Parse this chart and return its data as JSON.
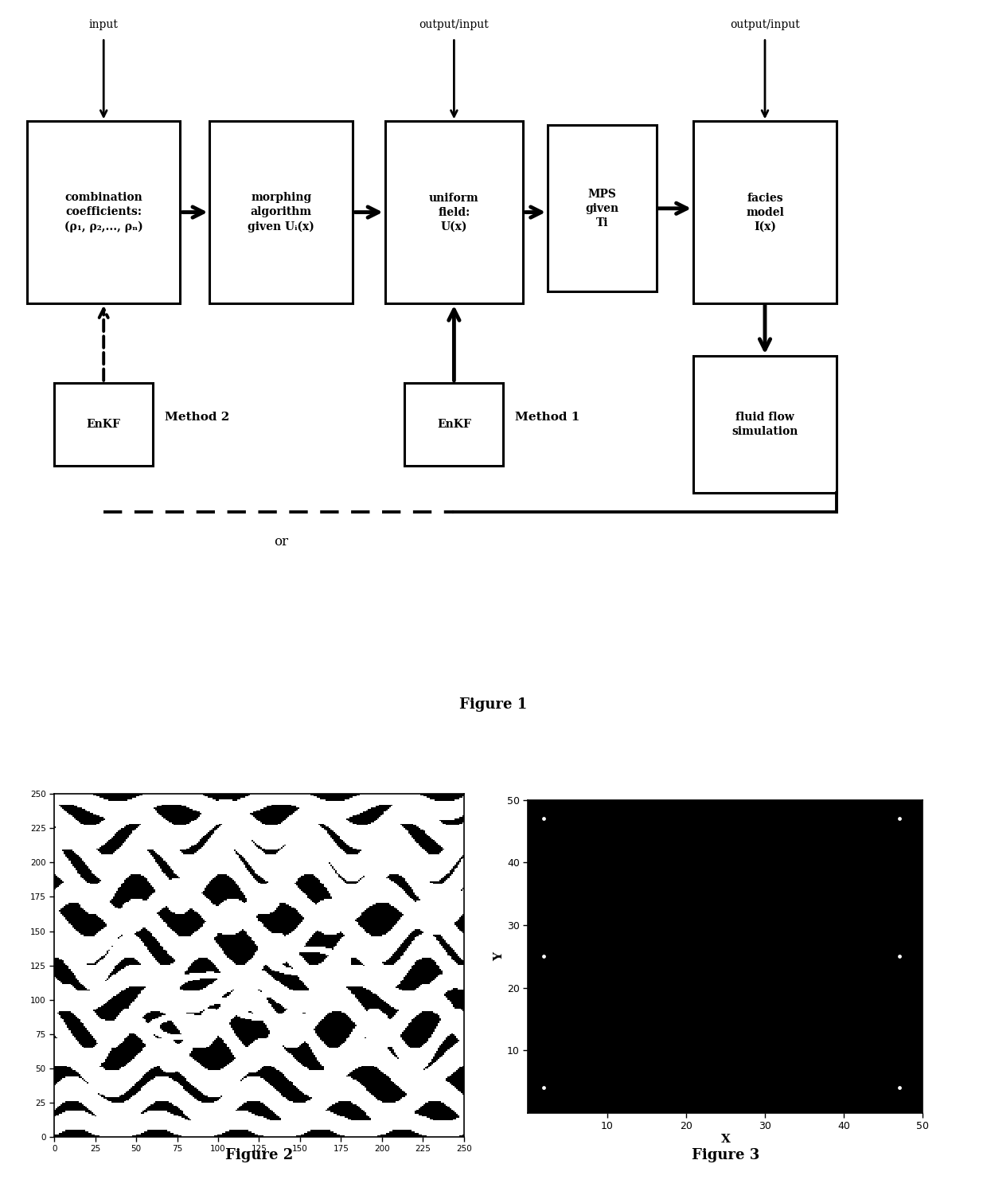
{
  "background_color": "#ffffff",
  "fig_width": 12.4,
  "fig_height": 15.11,
  "fig1_title": "Figure 1",
  "fig2_title": "Figure 2",
  "fig3_title": "Figure 3",
  "combo_text": "combination\ncoefficients:\n(ρ₁, ρ₂,..., ρₙ)",
  "morph_text": "morphing\nalgorithm\ngiven Uᵢ(x)",
  "uniform_text": "uniform\nfield:\nU(x)",
  "mps_text": "MPS\ngiven\nTi",
  "facies_text": "facies\nmodel\nI(x)",
  "fluid_text": "fluid flow\nsimulation",
  "enkf_text": "EnKF",
  "method1_text": "Method 1",
  "method2_text": "Method 2",
  "or_text": "or",
  "input_text": "input",
  "output_input_text": "output/input",
  "fig2_xticks": [
    0,
    25,
    50,
    75,
    100,
    125,
    150,
    175,
    200,
    225,
    250
  ],
  "fig2_yticks": [
    0,
    25,
    50,
    75,
    100,
    125,
    150,
    175,
    200,
    225,
    250
  ],
  "fig3_xticks": [
    10,
    20,
    30,
    40,
    50
  ],
  "fig3_yticks": [
    10,
    20,
    30,
    40,
    50
  ],
  "fig3_xlabel": "X",
  "fig3_ylabel": "Y",
  "fig3_xlim": [
    0,
    50
  ],
  "fig3_ylim": [
    0,
    50
  ],
  "wells_x": [
    2,
    47,
    2,
    47,
    2,
    47
  ],
  "wells_y": [
    47,
    47,
    25,
    25,
    4,
    4
  ]
}
